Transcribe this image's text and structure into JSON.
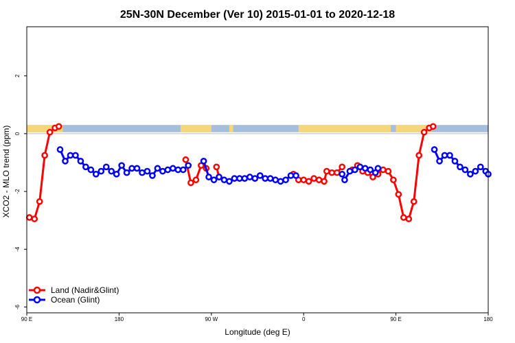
{
  "chart_data": {
    "type": "line",
    "title": "25N-30N December (Ver 10)   2015-01-01 to 2020-12-18",
    "xlabel": "Longitude (deg E)",
    "ylabel": "XCO2 - MLO trend (ppm)",
    "xlim": [
      90,
      270
    ],
    "ylim": [
      -6.2,
      3.7
    ],
    "x_ticks": [
      {
        "value": 90,
        "label": "90 E"
      },
      {
        "value": 126,
        "label": "180"
      },
      {
        "value": 162,
        "label": "90 W"
      },
      {
        "value": 198,
        "label": "0"
      },
      {
        "value": 234,
        "label": "90 E"
      },
      {
        "value": 270,
        "label": "180"
      }
    ],
    "y_ticks": [
      {
        "value": 2,
        "label": "2"
      },
      {
        "value": 0,
        "label": "0"
      },
      {
        "value": -2,
        "label": "-2"
      },
      {
        "value": -4,
        "label": "-4"
      },
      {
        "value": -6,
        "label": "-6"
      }
    ],
    "land_mask": {
      "y_bottom": 0.05,
      "y_top": 0.3,
      "ocean_color": "#a4bedc",
      "land_color": "#f5d77a",
      "land_segments": [
        [
          90,
          104
        ],
        [
          150,
          162
        ],
        [
          169,
          170.5
        ],
        [
          196,
          232
        ],
        [
          234,
          248
        ]
      ]
    },
    "legend": {
      "position": "bottom-left",
      "entries": [
        {
          "label": "Land (Nadir&Glint)",
          "color": "#ff0000"
        },
        {
          "label": "Ocean (Glint)",
          "color": "#0000ff"
        }
      ]
    },
    "series": [
      {
        "name": "Land (Nadir&Glint)",
        "color": "#ff0000",
        "points": [
          [
            91,
            -2.9
          ],
          [
            93,
            -2.95
          ],
          [
            95,
            -2.35
          ],
          [
            97,
            -0.75
          ],
          [
            99,
            0.05
          ],
          [
            101,
            0.2
          ],
          [
            102.5,
            0.25
          ],
          [
            152,
            -0.9
          ],
          [
            154,
            -1.7
          ],
          [
            156,
            -1.6
          ],
          [
            158,
            -1.1
          ],
          [
            160,
            -1.2
          ],
          [
            164,
            -1.15
          ],
          [
            165,
            -1.5
          ],
          [
            194,
            -1.4
          ],
          [
            196,
            -1.6
          ],
          [
            198,
            -1.6
          ],
          [
            200,
            -1.65
          ],
          [
            202,
            -1.55
          ],
          [
            204,
            -1.6
          ],
          [
            206,
            -1.65
          ],
          [
            207,
            -1.3
          ],
          [
            209,
            -1.35
          ],
          [
            211,
            -1.35
          ],
          [
            213,
            -1.15
          ],
          [
            217,
            -1.25
          ],
          [
            219,
            -1.1
          ],
          [
            221,
            -1.3
          ],
          [
            223,
            -1.35
          ],
          [
            225,
            -1.5
          ],
          [
            227,
            -1.4
          ],
          [
            229,
            -1.25
          ],
          [
            231,
            -1.3
          ],
          [
            233,
            -1.6
          ],
          [
            235,
            -2.1
          ],
          [
            237,
            -2.9
          ],
          [
            239,
            -2.95
          ],
          [
            241,
            -2.35
          ],
          [
            243,
            -0.75
          ],
          [
            245,
            0.05
          ],
          [
            247,
            0.2
          ],
          [
            248.5,
            0.25
          ]
        ]
      },
      {
        "name": "Ocean (Glint)",
        "color": "#0000ff",
        "points": [
          [
            103,
            -0.55
          ],
          [
            105,
            -0.95
          ],
          [
            107,
            -0.75
          ],
          [
            109,
            -0.75
          ],
          [
            111,
            -0.95
          ],
          [
            113,
            -1.15
          ],
          [
            115,
            -1.25
          ],
          [
            117,
            -1.4
          ],
          [
            119,
            -1.3
          ],
          [
            121,
            -1.15
          ],
          [
            123,
            -1.3
          ],
          [
            125,
            -1.4
          ],
          [
            127,
            -1.1
          ],
          [
            129,
            -1.35
          ],
          [
            131,
            -1.2
          ],
          [
            133,
            -1.2
          ],
          [
            135,
            -1.35
          ],
          [
            137,
            -1.3
          ],
          [
            139,
            -1.45
          ],
          [
            141,
            -1.2
          ],
          [
            143,
            -1.3
          ],
          [
            145,
            -1.25
          ],
          [
            147,
            -1.2
          ],
          [
            149,
            -1.25
          ],
          [
            151,
            -1.25
          ],
          [
            153,
            -1.1
          ],
          [
            159,
            -0.95
          ],
          [
            161,
            -1.5
          ],
          [
            163,
            -1.6
          ],
          [
            165,
            -1.5
          ],
          [
            167,
            -1.6
          ],
          [
            169,
            -1.65
          ],
          [
            171,
            -1.55
          ],
          [
            173,
            -1.55
          ],
          [
            175,
            -1.55
          ],
          [
            177,
            -1.5
          ],
          [
            179,
            -1.55
          ],
          [
            181,
            -1.45
          ],
          [
            183,
            -1.55
          ],
          [
            185,
            -1.55
          ],
          [
            187,
            -1.6
          ],
          [
            189,
            -1.65
          ],
          [
            191,
            -1.6
          ],
          [
            193,
            -1.45
          ],
          [
            195,
            -1.45
          ],
          [
            213,
            -1.4
          ],
          [
            214,
            -1.6
          ],
          [
            216,
            -1.3
          ],
          [
            218,
            -1.25
          ],
          [
            220,
            -1.15
          ],
          [
            222,
            -1.2
          ],
          [
            224,
            -1.25
          ],
          [
            226,
            -1.35
          ],
          [
            227,
            -1.2
          ],
          [
            249,
            -0.55
          ],
          [
            251,
            -0.95
          ],
          [
            253,
            -0.75
          ],
          [
            255,
            -0.75
          ],
          [
            257,
            -0.95
          ],
          [
            259,
            -1.15
          ],
          [
            261,
            -1.25
          ],
          [
            263,
            -1.4
          ],
          [
            265,
            -1.3
          ],
          [
            267,
            -1.15
          ],
          [
            269,
            -1.3
          ],
          [
            270,
            -1.4
          ]
        ]
      }
    ]
  }
}
